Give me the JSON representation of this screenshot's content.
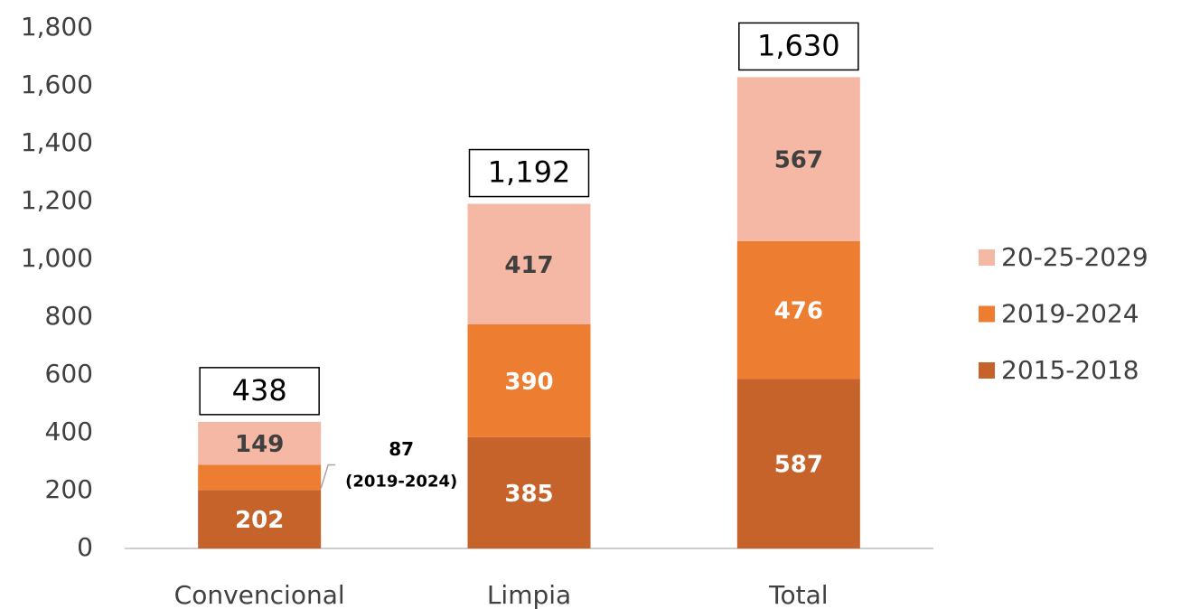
{
  "chart_data": {
    "type": "stacked_bar",
    "categories": [
      "Convencional",
      "Limpia",
      "Total"
    ],
    "series": [
      {
        "name": "2015-2018",
        "color": "#c5632a",
        "values": [
          202,
          385,
          587
        ]
      },
      {
        "name": "2019-2024",
        "color": "#ed7d31",
        "values": [
          87,
          390,
          476
        ]
      },
      {
        "name": "20-25-2029",
        "color": "#f4b8a4",
        "values": [
          149,
          417,
          567
        ]
      }
    ],
    "totals": [
      438,
      1192,
      1630
    ],
    "total_labels": [
      "438",
      "1,192",
      "1,630"
    ],
    "annotation": "(2019-2024)",
    "ylim": [
      0,
      1800
    ],
    "yticks": [
      0,
      200,
      400,
      600,
      800,
      {
        "value": 1000,
        "label": "1,000"
      },
      {
        "value": 1200,
        "label": "1,200"
      },
      {
        "value": 1400,
        "label": "1,400"
      },
      {
        "value": 1600,
        "label": "1,600"
      },
      {
        "value": 1800,
        "label": "1,800"
      }
    ],
    "grid": false,
    "legend": "right"
  }
}
